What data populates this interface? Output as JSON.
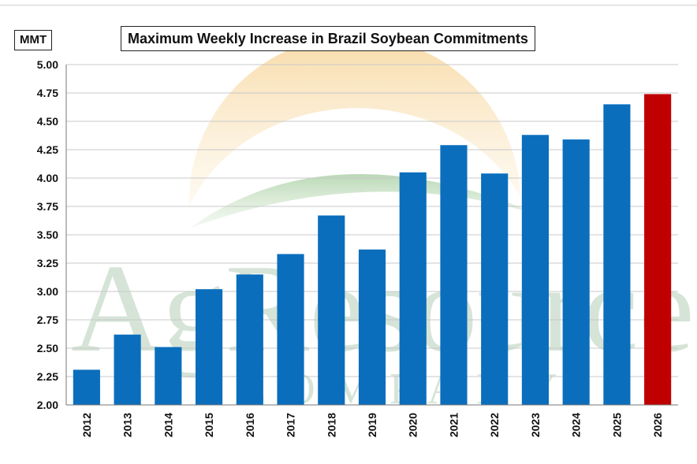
{
  "chart_data": {
    "type": "bar",
    "title": "Maximum Weekly Increase in Brazil Soybean Commitments",
    "unit_label": "MMT",
    "categories": [
      "2012",
      "2013",
      "2014",
      "2015",
      "2016",
      "2017",
      "2018",
      "2019",
      "2020",
      "2021",
      "2022",
      "2023",
      "2024",
      "2025",
      "2026"
    ],
    "values": [
      2.31,
      2.62,
      2.51,
      3.02,
      3.15,
      3.33,
      3.67,
      3.37,
      4.05,
      4.29,
      4.04,
      4.38,
      4.34,
      4.65,
      4.74
    ],
    "highlight_category": "2026",
    "ylim": [
      2.0,
      5.0
    ],
    "yticks": [
      "2.00",
      "2.25",
      "2.50",
      "2.75",
      "3.00",
      "3.25",
      "3.50",
      "3.75",
      "4.00",
      "4.25",
      "4.50",
      "4.75",
      "5.00"
    ],
    "grid": true,
    "colors": {
      "bar": "#0a6ebd",
      "highlight": "#c00000",
      "grid": "#c8c8c8"
    }
  },
  "watermark": {
    "logo_text": "AgResource",
    "sub_text": "COMPANY"
  }
}
